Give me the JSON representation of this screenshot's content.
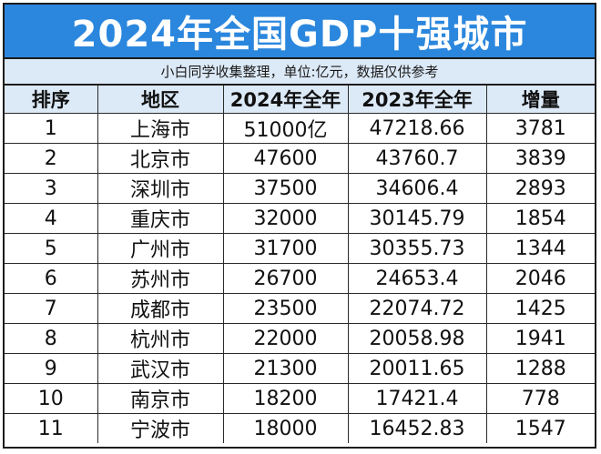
{
  "title": "2024年全国GDP十强城市",
  "subtitle": "小白同学收集整理，单位:亿元，数据仅供参考",
  "columns": [
    "排序",
    "地区",
    "2024年全年",
    "2023年全年",
    "增量"
  ],
  "rows": [
    [
      "1",
      "上海市",
      "51000亿",
      "47218.66",
      "3781"
    ],
    [
      "2",
      "北京市",
      "47600",
      "43760.7",
      "3839"
    ],
    [
      "3",
      "深圳市",
      "37500",
      "34606.4",
      "2893"
    ],
    [
      "4",
      "重庆市",
      "32000",
      "30145.79",
      "1854"
    ],
    [
      "5",
      "广州市",
      "31700",
      "30355.73",
      "1344"
    ],
    [
      "6",
      "苏州市",
      "26700",
      "24653.4",
      "2046"
    ],
    [
      "7",
      "成都市",
      "23500",
      "22074.72",
      "1425"
    ],
    [
      "8",
      "杭州市",
      "22000",
      "20058.98",
      "1941"
    ],
    [
      "9",
      "武汉市",
      "21300",
      "20011.65",
      "1288"
    ],
    [
      "10",
      "南京市",
      "18200",
      "17421.4",
      "778"
    ],
    [
      "11",
      "宁波市",
      "18000",
      "16452.83",
      "1547"
    ]
  ],
  "colors": {
    "title_bg": "#2b87dd",
    "header_bg": "#dce9f7",
    "border": "#1c1c1c"
  }
}
